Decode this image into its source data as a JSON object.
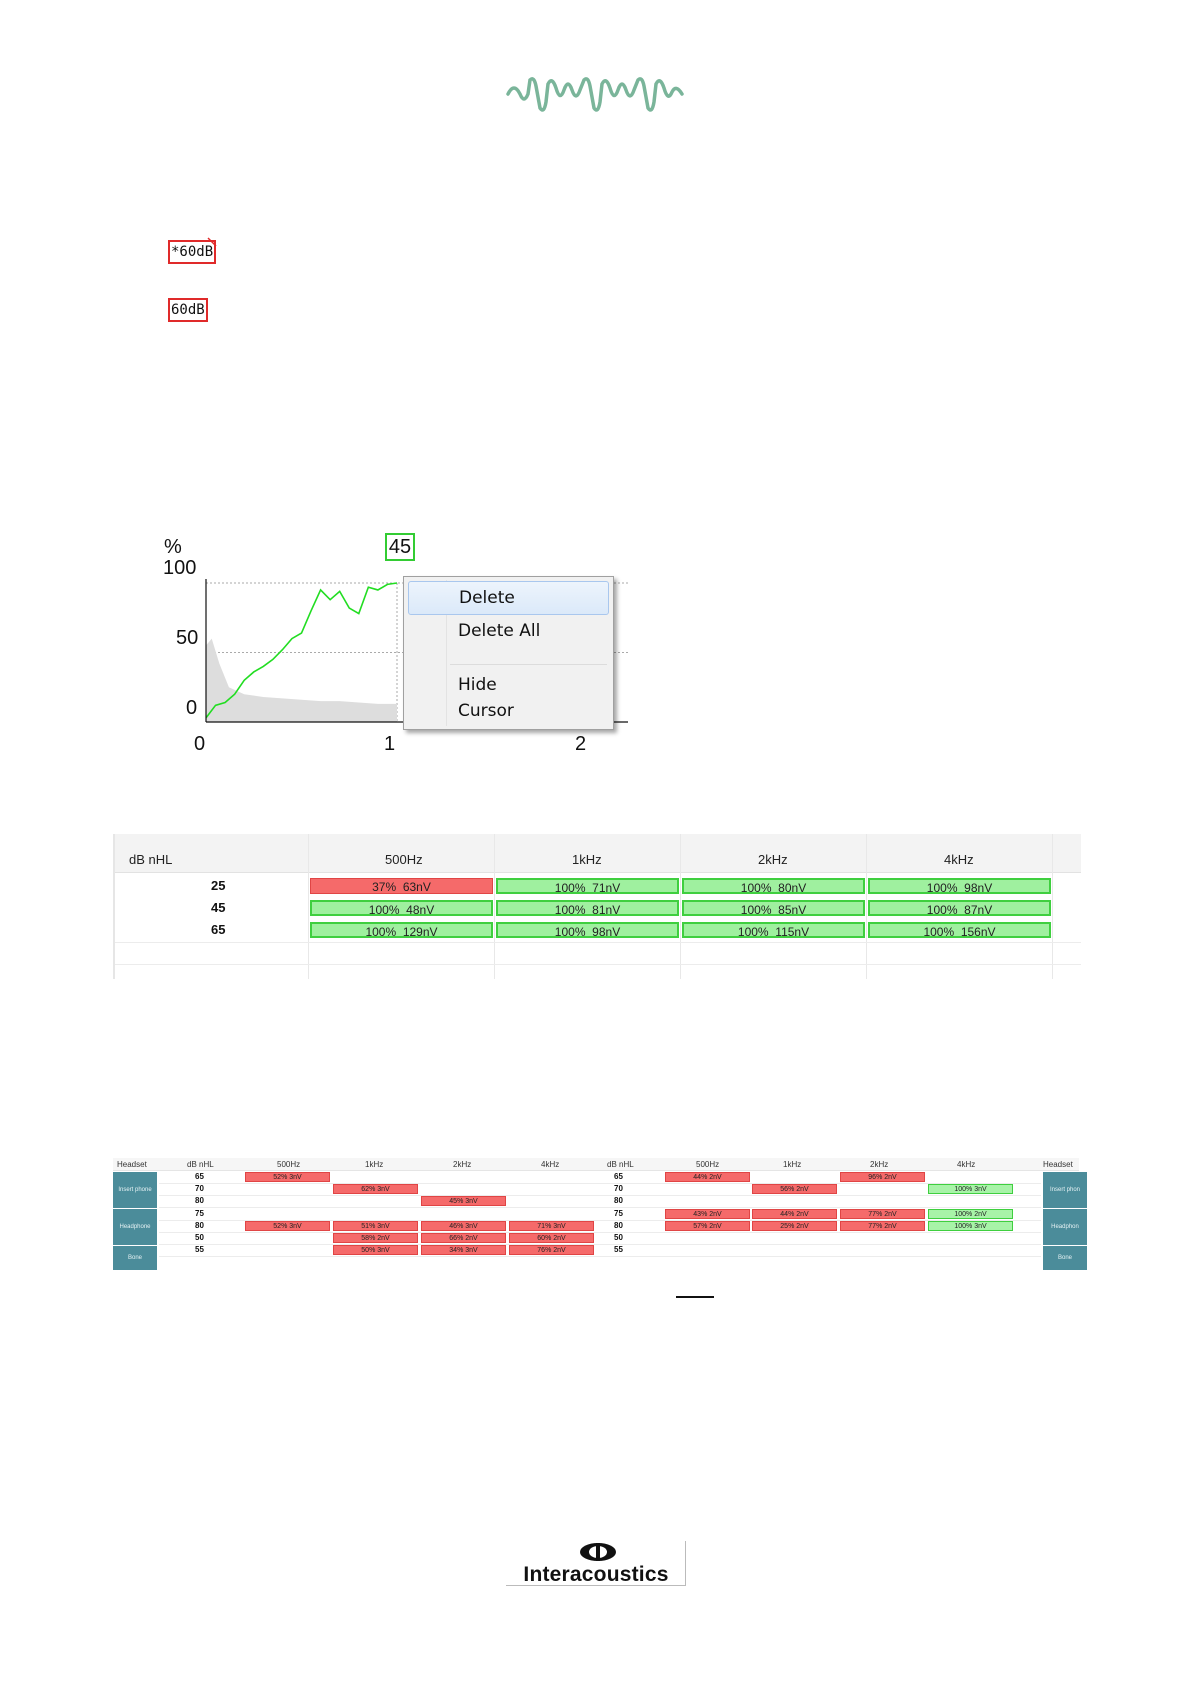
{
  "markers": {
    "marker_1": "*60dB",
    "marker_2": "60dB"
  },
  "chart": {
    "y_unit": "%",
    "y_ticks": [
      "100",
      "50",
      "0"
    ],
    "x_ticks": [
      "0",
      "1",
      "2"
    ],
    "cursor_value": "45"
  },
  "chart_data": {
    "type": "line",
    "title": "",
    "xlabel": "",
    "ylabel": "%",
    "xlim": [
      0,
      2.2
    ],
    "ylim": [
      0,
      100
    ],
    "grid": true,
    "series": [
      {
        "color": "#22dd22",
        "x": [
          0,
          0.05,
          0.1,
          0.15,
          0.2,
          0.25,
          0.3,
          0.35,
          0.4,
          0.45,
          0.5,
          0.55,
          0.6,
          0.65,
          0.7,
          0.75,
          0.8,
          0.85,
          0.9,
          0.95,
          1.0
        ],
        "y": [
          3,
          12,
          14,
          20,
          30,
          36,
          40,
          45,
          52,
          60,
          64,
          80,
          95,
          88,
          94,
          82,
          78,
          97,
          95,
          99,
          100
        ]
      },
      {
        "color": "#dddddd",
        "x": [
          0,
          0.03,
          0.07,
          0.12,
          0.2,
          0.3,
          0.4,
          0.5,
          0.6,
          0.7,
          0.8,
          0.9,
          1.0
        ],
        "y": [
          55,
          60,
          42,
          25,
          20,
          18,
          17,
          16,
          15,
          15,
          14,
          13,
          13
        ]
      }
    ]
  },
  "menu": {
    "delete": "Delete",
    "delete_all": "Delete All",
    "hide": "Hide",
    "cursor": "Cursor"
  },
  "table1": {
    "corner": "dB nHL",
    "columns": [
      "500Hz",
      "1kHz",
      "2kHz",
      "4kHz"
    ],
    "rows": [
      {
        "level": "25",
        "cells": [
          [
            "37%",
            "63nV",
            "red"
          ],
          [
            "100%",
            "71nV",
            "green"
          ],
          [
            "100%",
            "80nV",
            "green"
          ],
          [
            "100%",
            "98nV",
            "green"
          ]
        ]
      },
      {
        "level": "45",
        "cells": [
          [
            "100%",
            "48nV",
            "green"
          ],
          [
            "100%",
            "81nV",
            "green"
          ],
          [
            "100%",
            "85nV",
            "green"
          ],
          [
            "100%",
            "87nV",
            "green"
          ]
        ]
      },
      {
        "level": "65",
        "cells": [
          [
            "100%",
            "129nV",
            "green"
          ],
          [
            "100%",
            "98nV",
            "green"
          ],
          [
            "100%",
            "115nV",
            "green"
          ],
          [
            "100%",
            "156nV",
            "green"
          ]
        ]
      }
    ]
  },
  "table2": {
    "headset": "Headset",
    "corner": "dB nHL",
    "columns": [
      "500Hz",
      "1kHz",
      "2kHz",
      "4kHz"
    ],
    "side_labels": [
      "Insert phone",
      "Headphone",
      "Bone"
    ],
    "side_labels_right": [
      "Insert phon",
      "Headphon",
      "Bone"
    ],
    "left_levels": [
      "65",
      "70",
      "80",
      "75",
      "80",
      "50",
      "55"
    ],
    "right_levels": [
      "65",
      "70",
      "80",
      "75",
      "80",
      "50",
      "55"
    ],
    "left_cells": [
      {
        "row": 0,
        "col": 0,
        "text": "52%  3nV",
        "kind": "red"
      },
      {
        "row": 1,
        "col": 1,
        "text": "62%  3nV",
        "kind": "red"
      },
      {
        "row": 2,
        "col": 2,
        "text": "45%  3nV",
        "kind": "red"
      },
      {
        "row": 4,
        "col": 0,
        "text": "52%  3nV",
        "kind": "red"
      },
      {
        "row": 4,
        "col": 1,
        "text": "51%  3nV",
        "kind": "red"
      },
      {
        "row": 4,
        "col": 2,
        "text": "46%  3nV",
        "kind": "red"
      },
      {
        "row": 4,
        "col": 3,
        "text": "71%  3nV",
        "kind": "red"
      },
      {
        "row": 5,
        "col": 1,
        "text": "58%  2nV",
        "kind": "red"
      },
      {
        "row": 5,
        "col": 2,
        "text": "66%  2nV",
        "kind": "red"
      },
      {
        "row": 5,
        "col": 3,
        "text": "60%  2nV",
        "kind": "red"
      },
      {
        "row": 6,
        "col": 1,
        "text": "50%  3nV",
        "kind": "red"
      },
      {
        "row": 6,
        "col": 2,
        "text": "34%  3nV",
        "kind": "red"
      },
      {
        "row": 6,
        "col": 3,
        "text": "76%  2nV",
        "kind": "red"
      }
    ],
    "right_cells": [
      {
        "row": 0,
        "col": 0,
        "text": "44%  2nV",
        "kind": "red"
      },
      {
        "row": 0,
        "col": 2,
        "text": "96%  2nV",
        "kind": "red"
      },
      {
        "row": 1,
        "col": 1,
        "text": "56%  2nV",
        "kind": "red"
      },
      {
        "row": 1,
        "col": 3,
        "text": "100%  3nV",
        "kind": "green"
      },
      {
        "row": 3,
        "col": 0,
        "text": "43%  2nV",
        "kind": "red"
      },
      {
        "row": 3,
        "col": 1,
        "text": "44%  2nV",
        "kind": "red"
      },
      {
        "row": 3,
        "col": 2,
        "text": "77%  2nV",
        "kind": "red"
      },
      {
        "row": 3,
        "col": 3,
        "text": "100%  2nV",
        "kind": "green"
      },
      {
        "row": 4,
        "col": 0,
        "text": "57%  2nV",
        "kind": "red"
      },
      {
        "row": 4,
        "col": 1,
        "text": "25%  2nV",
        "kind": "red"
      },
      {
        "row": 4,
        "col": 2,
        "text": "77%  2nV",
        "kind": "red"
      },
      {
        "row": 4,
        "col": 3,
        "text": "100%  3nV",
        "kind": "green"
      }
    ]
  },
  "footer": {
    "brand": "Interacoustics"
  },
  "colors": {
    "wave": "#7ab59a",
    "red": "#f56a6a",
    "green": "#9ff09f",
    "side": "#4b8c9a"
  }
}
